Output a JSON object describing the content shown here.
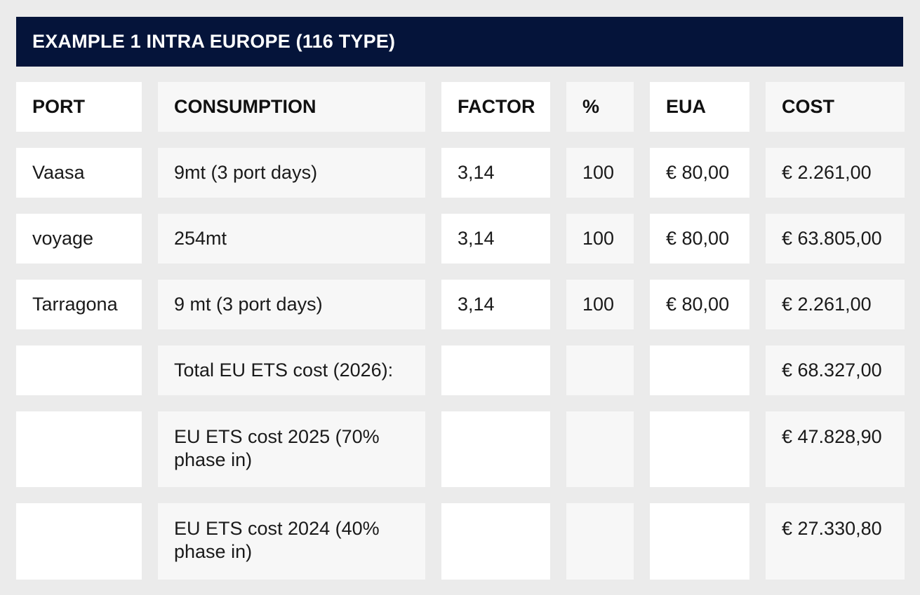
{
  "title": "EXAMPLE 1 INTRA EUROPE (116 TYPE)",
  "headers": {
    "port": "PORT",
    "consumption": "CONSUMPTION",
    "factor": "FACTOR",
    "percent": "%",
    "eua": "EUA",
    "cost": "COST"
  },
  "rows": [
    {
      "port": "Vaasa",
      "consumption": "9mt (3 port days)",
      "factor": "3,14",
      "percent": "100",
      "eua": "€ 80,00",
      "cost": "€ 2.261,00"
    },
    {
      "port": "voyage",
      "consumption": "254mt",
      "factor": "3,14",
      "percent": "100",
      "eua": "€ 80,00",
      "cost": "€ 63.805,00"
    },
    {
      "port": "Tarragona",
      "consumption": "9 mt (3 port days)",
      "factor": "3,14",
      "percent": "100",
      "eua": "€ 80,00",
      "cost": "€ 2.261,00"
    }
  ],
  "totals": [
    {
      "label": "Total EU ETS cost (2026):",
      "cost": "€ 68.327,00"
    },
    {
      "label": "EU ETS cost 2025 (70% phase in)",
      "cost": "€ 47.828,90"
    },
    {
      "label": "EU ETS cost 2024 (40% phase in)",
      "cost": "€ 27.330,80"
    }
  ]
}
